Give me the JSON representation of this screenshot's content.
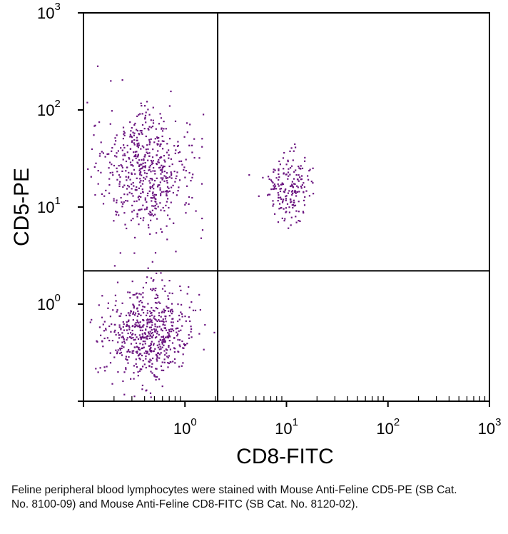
{
  "chart_data": {
    "type": "scatter",
    "xlabel": "CD8-FITC",
    "ylabel": "CD5-PE",
    "x_scale": "log",
    "y_scale": "log",
    "xlim": [
      0.1,
      1000
    ],
    "ylim": [
      0.1,
      1000
    ],
    "x_ticks": [
      {
        "base": "10",
        "exp": "0"
      },
      {
        "base": "10",
        "exp": "1"
      },
      {
        "base": "10",
        "exp": "2"
      },
      {
        "base": "10",
        "exp": "3"
      }
    ],
    "y_ticks": [
      {
        "base": "10",
        "exp": "0"
      },
      {
        "base": "10",
        "exp": "1"
      },
      {
        "base": "10",
        "exp": "2"
      },
      {
        "base": "10",
        "exp": "3"
      }
    ],
    "quadrant_gates": {
      "x": 2.1,
      "y": 2.2
    },
    "point_color": "#6b1580",
    "grid": false,
    "populations": [
      {
        "x_center": 0.4,
        "y_center": 25,
        "x_log_spread": 0.22,
        "y_log_spread": 0.3,
        "count": 560
      },
      {
        "x_center": 10.5,
        "y_center": 16,
        "x_log_spread": 0.12,
        "y_log_spread": 0.17,
        "count": 190
      },
      {
        "x_center": 0.42,
        "y_center": 0.5,
        "x_log_spread": 0.21,
        "y_log_spread": 0.25,
        "count": 620
      }
    ]
  },
  "caption": "Feline peripheral blood lymphocytes were stained with Mouse Anti-Feline CD5-PE (SB Cat. No. 8100-09) and Mouse Anti-Feline CD8-FITC (SB Cat. No. 8120-02)."
}
